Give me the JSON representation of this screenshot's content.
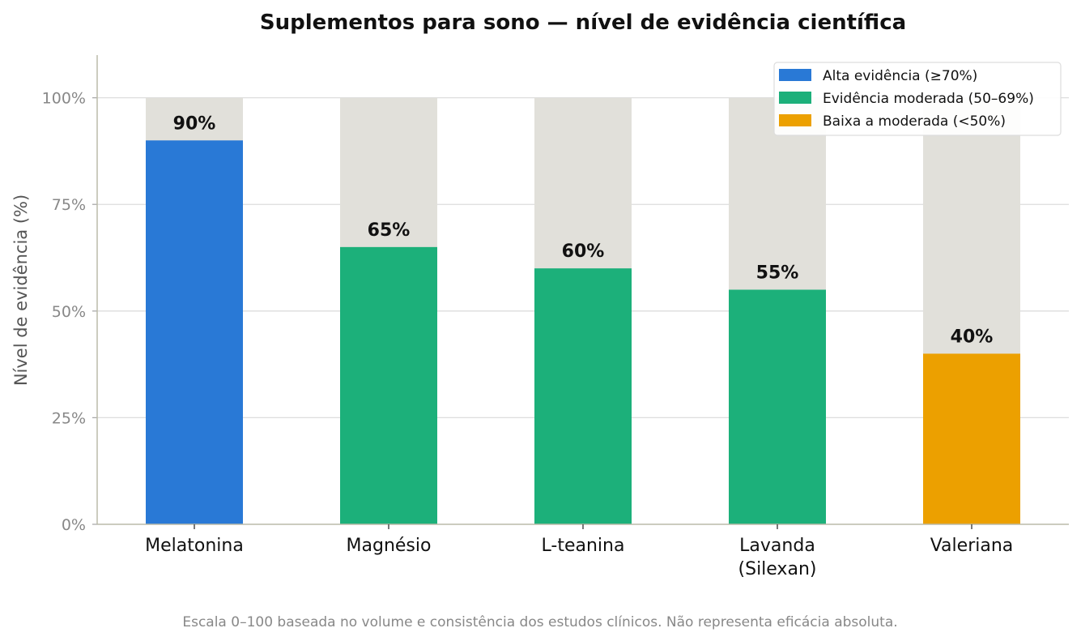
{
  "chart_data": {
    "type": "bar",
    "title": "Suplementos para sono — nível de evidência científica",
    "ylabel": "Nível de evidência (%)",
    "xlabel": "",
    "ylim": [
      0,
      110
    ],
    "yticks": [
      0,
      25,
      50,
      75,
      100
    ],
    "ytick_labels": [
      "0%",
      "25%",
      "50%",
      "75%",
      "100%"
    ],
    "categories": [
      [
        "Melatonina"
      ],
      [
        "Magnésio"
      ],
      [
        "L-teanina"
      ],
      [
        "Lavanda",
        "(Silexan)"
      ],
      [
        "Valeriana"
      ]
    ],
    "values": [
      90,
      65,
      60,
      55,
      40
    ],
    "data_labels": [
      "90%",
      "65%",
      "60%",
      "55%",
      "40%"
    ],
    "background_max": 100,
    "bar_colors": [
      "#2979d6",
      "#1cb07a",
      "#1cb07a",
      "#1cb07a",
      "#eca000"
    ],
    "background_color": "#e1e0da",
    "grid": true,
    "grid_color": "#dddddd",
    "legend_position": "top-right",
    "legend": [
      {
        "label": "Alta evidência (≥70%)",
        "color": "#2979d6"
      },
      {
        "label": "Evidência moderada (50–69%)",
        "color": "#1cb07a"
      },
      {
        "label": "Baixa a moderada (<50%)",
        "color": "#eca000"
      }
    ],
    "footnote": "Escala 0–100 baseada no volume e consistência dos estudos clínicos. Não representa eficácia absoluta."
  }
}
